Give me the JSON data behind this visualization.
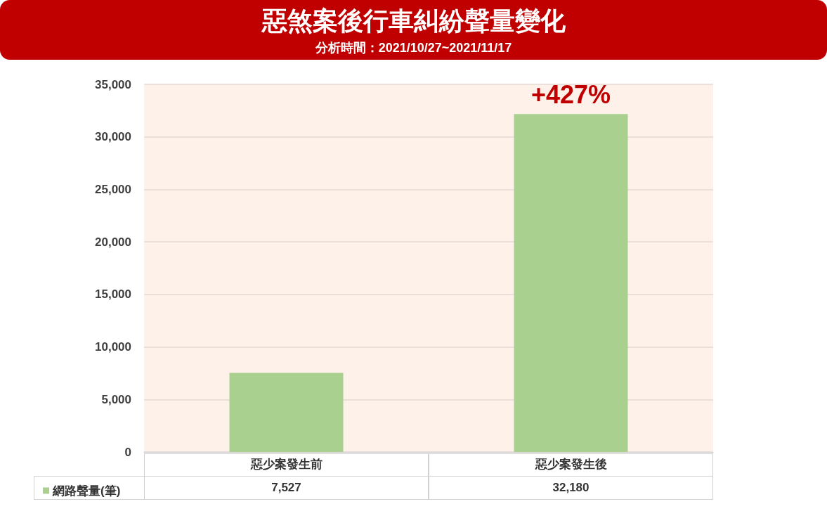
{
  "chart_data": {
    "type": "bar",
    "title": "惡煞案後行車糾紛聲量變化",
    "subtitle": "分析時間：2021/10/27~2021/11/17",
    "categories": [
      "惡少案發生前",
      "惡少案發生後"
    ],
    "series": [
      {
        "name": "網路聲量(筆)",
        "color": "#a9d08e",
        "values": [
          7527,
          32180
        ],
        "value_labels": [
          "7,527",
          "32,180"
        ]
      }
    ],
    "ylim": [
      0,
      35000
    ],
    "yticks": [
      0,
      {
        "value": 5000,
        "label": "5,000"
      },
      {
        "value": 10000,
        "label": "10,000"
      },
      {
        "value": 15000,
        "label": "15,000"
      },
      {
        "value": 20000,
        "label": "20,000"
      },
      {
        "value": 25000,
        "label": "25,000"
      },
      {
        "value": 30000,
        "label": "30,000"
      },
      {
        "value": 35000,
        "label": "35,000"
      }
    ],
    "grid": "y",
    "legend": "bottom left",
    "annotations": [
      {
        "text": "+427%",
        "x": "惡少案發生後",
        "y": 32180
      }
    ]
  }
}
